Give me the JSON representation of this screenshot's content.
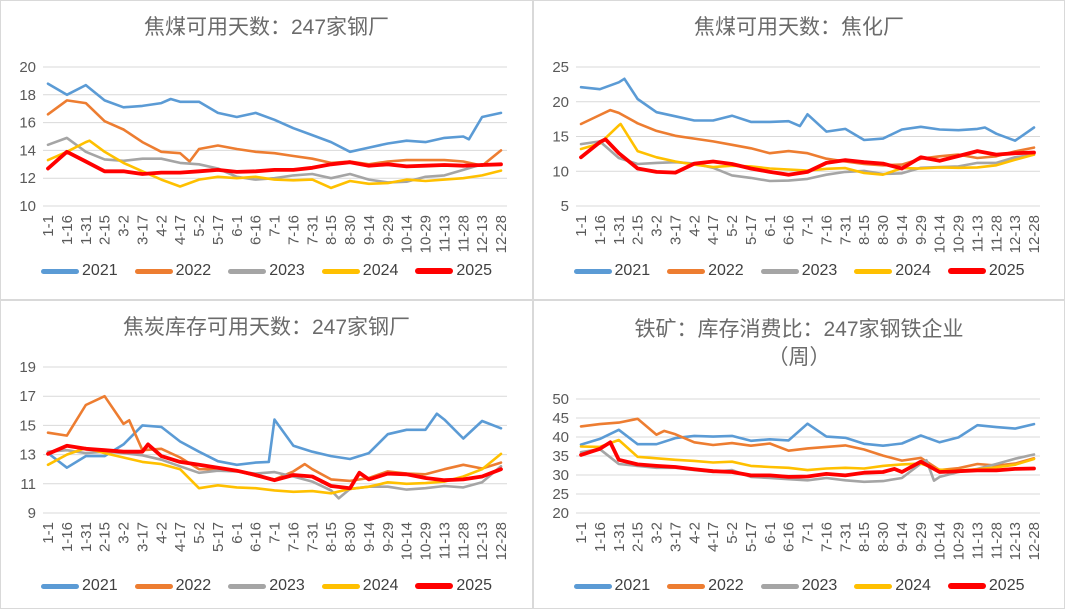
{
  "style": {
    "grid_color": "#D9D9D9",
    "tick_color": "#595959",
    "title_color": "#6B6B6B",
    "legend_text_color": "#404040",
    "background": "#FFFFFF"
  },
  "legend": {
    "items": [
      {
        "label": "2021",
        "color": "#5B9BD5"
      },
      {
        "label": "2022",
        "color": "#ED7D31"
      },
      {
        "label": "2023",
        "color": "#A5A5A5"
      },
      {
        "label": "2024",
        "color": "#FFC000"
      },
      {
        "label": "2025",
        "color": "#FF0000"
      }
    ],
    "emphasized_series": "2025"
  },
  "chart_data": [
    {
      "type": "line",
      "title": "焦煤可用天数：247家钢厂",
      "title_lines": [
        "焦煤可用天数：247家钢厂"
      ],
      "ylim": [
        10,
        20
      ],
      "yticks": [
        10,
        12,
        14,
        16,
        18,
        20
      ],
      "grid": true,
      "legend_position": "bottom",
      "categories": [
        "1-1",
        "1-16",
        "1-31",
        "2-15",
        "3-2",
        "3-17",
        "4-2",
        "4-17",
        "5-2",
        "5-17",
        "6-1",
        "6-16",
        "7-1",
        "7-16",
        "7-31",
        "8-15",
        "8-30",
        "9-14",
        "9-29",
        "10-14",
        "10-29",
        "11-13",
        "11-28",
        "12-13",
        "12-28"
      ],
      "series": [
        {
          "name": "2021",
          "color": "#5B9BD5",
          "width": 2.6,
          "values": [
            18.8,
            18.0,
            18.7,
            17.6,
            17.1,
            17.2,
            17.4,
            17.5,
            17.5,
            16.7,
            16.4,
            16.7,
            16.2,
            15.6,
            15.1,
            14.6,
            13.9,
            14.2,
            14.5,
            14.7,
            14.6,
            14.9,
            15.0,
            16.4,
            16.7
          ],
          "extra": [
            [
              6.5,
              17.7
            ],
            [
              22.3,
              14.8
            ]
          ]
        },
        {
          "name": "2022",
          "color": "#ED7D31",
          "width": 2.6,
          "values": [
            16.6,
            17.6,
            17.4,
            16.1,
            15.5,
            14.6,
            13.9,
            13.8,
            14.1,
            14.35,
            14.1,
            13.9,
            13.8,
            13.6,
            13.4,
            13.1,
            13.2,
            13.0,
            13.2,
            13.3,
            13.3,
            13.3,
            13.2,
            12.9,
            14.0
          ],
          "extra": [
            [
              7.5,
              13.2
            ]
          ]
        },
        {
          "name": "2023",
          "color": "#A5A5A5",
          "width": 2.6,
          "values": [
            14.4,
            14.9,
            13.9,
            13.35,
            13.25,
            13.4,
            13.4,
            13.1,
            13.0,
            12.7,
            12.1,
            11.9,
            12.0,
            12.2,
            12.3,
            12.0,
            12.3,
            11.9,
            11.7,
            11.75,
            12.1,
            12.2,
            12.6,
            13.0,
            13.0
          ],
          "extra": []
        },
        {
          "name": "2024",
          "color": "#FFC000",
          "width": 2.6,
          "values": [
            13.3,
            13.9,
            14.6,
            13.9,
            13.1,
            12.5,
            11.9,
            11.4,
            11.9,
            12.1,
            12.0,
            12.1,
            11.9,
            11.85,
            11.9,
            11.3,
            11.8,
            11.6,
            11.65,
            11.9,
            11.8,
            11.9,
            12.0,
            12.2,
            12.55
          ],
          "extra": [
            [
              2.2,
              14.7
            ]
          ]
        },
        {
          "name": "2025",
          "color": "#FF0000",
          "width": 3.8,
          "values": [
            12.7,
            13.9,
            13.2,
            12.5,
            12.5,
            12.3,
            12.4,
            12.4,
            12.5,
            12.6,
            12.45,
            12.5,
            12.6,
            12.6,
            12.75,
            13.0,
            13.15,
            12.9,
            13.0,
            12.85,
            12.9,
            12.95,
            12.9,
            12.95,
            13.0
          ],
          "extra": []
        }
      ]
    },
    {
      "type": "line",
      "title": "焦煤可用天数：焦化厂",
      "title_lines": [
        "焦煤可用天数：焦化厂"
      ],
      "ylim": [
        5,
        25
      ],
      "yticks": [
        5,
        10,
        15,
        20,
        25
      ],
      "grid": true,
      "legend_position": "bottom",
      "categories": [
        "1-1",
        "1-16",
        "1-31",
        "2-15",
        "3-2",
        "3-17",
        "4-2",
        "4-17",
        "5-2",
        "5-17",
        "6-1",
        "6-16",
        "7-1",
        "7-16",
        "7-31",
        "8-15",
        "8-30",
        "9-14",
        "9-29",
        "10-14",
        "10-29",
        "11-13",
        "11-28",
        "12-13",
        "12-28"
      ],
      "series": [
        {
          "name": "2021",
          "color": "#5B9BD5",
          "width": 2.6,
          "values": [
            22.1,
            21.8,
            22.8,
            20.4,
            18.5,
            17.9,
            17.3,
            17.3,
            18.0,
            17.1,
            17.1,
            17.2,
            18.2,
            15.7,
            16.1,
            14.5,
            14.7,
            16.0,
            16.4,
            16.0,
            15.9,
            16.1,
            15.4,
            14.4,
            16.3
          ],
          "extra": [
            [
              2.3,
              23.3
            ],
            [
              11.6,
              16.5
            ],
            [
              21.4,
              16.3
            ]
          ]
        },
        {
          "name": "2022",
          "color": "#ED7D31",
          "width": 2.6,
          "values": [
            16.8,
            18.1,
            18.4,
            16.9,
            15.8,
            15.1,
            14.7,
            14.3,
            13.8,
            13.3,
            12.6,
            12.9,
            12.6,
            11.8,
            11.4,
            11.05,
            10.85,
            10.95,
            11.8,
            12.15,
            12.4,
            11.9,
            12.15,
            12.85,
            13.4
          ],
          "extra": [
            [
              1.55,
              18.8
            ]
          ]
        },
        {
          "name": "2023",
          "color": "#A5A5A5",
          "width": 2.6,
          "values": [
            13.9,
            14.3,
            11.9,
            11.05,
            11.2,
            11.3,
            11.1,
            10.5,
            9.4,
            9.05,
            8.6,
            8.65,
            8.9,
            9.5,
            9.9,
            10.05,
            9.6,
            9.7,
            10.5,
            10.6,
            10.7,
            11.2,
            11.2,
            12.0,
            12.4
          ],
          "extra": []
        },
        {
          "name": "2024",
          "color": "#FFC000",
          "width": 2.6,
          "values": [
            13.2,
            14.0,
            16.6,
            12.9,
            12.0,
            11.4,
            10.95,
            10.6,
            10.8,
            10.7,
            10.4,
            10.25,
            10.1,
            10.35,
            10.45,
            9.75,
            9.5,
            10.45,
            10.4,
            10.55,
            10.5,
            10.55,
            10.85,
            11.65,
            12.4
          ],
          "extra": [
            [
              2.1,
              16.8
            ]
          ]
        },
        {
          "name": "2025",
          "color": "#FF0000",
          "width": 3.8,
          "values": [
            12.0,
            14.2,
            12.6,
            10.4,
            9.9,
            9.8,
            11.1,
            11.4,
            11.05,
            10.4,
            9.9,
            9.5,
            9.9,
            11.2,
            11.6,
            11.3,
            11.1,
            10.4,
            12.0,
            11.5,
            12.2,
            12.9,
            12.4,
            12.6,
            12.7
          ],
          "extra": [
            [
              1.3,
              14.6
            ]
          ]
        }
      ]
    },
    {
      "type": "line",
      "title": "焦炭库存可用天数：247家钢厂",
      "title_lines": [
        "焦炭库存可用天数：247家钢厂"
      ],
      "ylim": [
        9,
        19
      ],
      "yticks": [
        9,
        11,
        13,
        15,
        17,
        19
      ],
      "grid": true,
      "legend_position": "bottom",
      "categories": [
        "1-1",
        "1-16",
        "1-31",
        "2-15",
        "3-2",
        "3-17",
        "4-2",
        "4-17",
        "5-2",
        "5-17",
        "6-1",
        "6-16",
        "7-1",
        "7-16",
        "7-31",
        "8-15",
        "8-30",
        "9-14",
        "9-29",
        "10-14",
        "10-29",
        "11-13",
        "11-28",
        "12-13",
        "12-28"
      ],
      "series": [
        {
          "name": "2021",
          "color": "#5B9BD5",
          "width": 2.6,
          "values": [
            13.1,
            12.1,
            12.9,
            12.9,
            13.7,
            15.0,
            14.9,
            13.9,
            13.2,
            12.55,
            12.3,
            12.45,
            15.4,
            13.6,
            13.2,
            12.9,
            12.7,
            13.1,
            14.4,
            14.7,
            14.7,
            15.4,
            14.1,
            15.3,
            14.8
          ],
          "extra": [
            [
              11.7,
              12.5
            ],
            [
              20.6,
              15.8
            ]
          ]
        },
        {
          "name": "2022",
          "color": "#ED7D31",
          "width": 2.6,
          "values": [
            14.5,
            14.3,
            16.4,
            17.0,
            15.1,
            13.3,
            13.4,
            12.8,
            12.0,
            12.0,
            11.9,
            11.55,
            11.3,
            11.85,
            12.0,
            11.3,
            11.2,
            11.4,
            11.85,
            11.7,
            11.65,
            12.0,
            12.3,
            12.05,
            12.45
          ],
          "extra": [
            [
              4.3,
              15.35
            ],
            [
              13.6,
              12.35
            ]
          ]
        },
        {
          "name": "2023",
          "color": "#A5A5A5",
          "width": 2.6,
          "values": [
            13.2,
            13.3,
            13.1,
            13.2,
            13.1,
            12.95,
            12.65,
            12.2,
            11.75,
            11.9,
            11.85,
            11.7,
            11.8,
            11.5,
            11.15,
            10.55,
            10.65,
            10.8,
            10.8,
            10.6,
            10.7,
            10.85,
            10.75,
            11.1,
            12.2
          ],
          "extra": [
            [
              15.4,
              10.0
            ]
          ]
        },
        {
          "name": "2024",
          "color": "#FFC000",
          "width": 2.6,
          "values": [
            12.3,
            13.0,
            13.45,
            13.1,
            12.8,
            12.5,
            12.35,
            12.0,
            10.7,
            10.9,
            10.75,
            10.7,
            10.55,
            10.45,
            10.5,
            10.35,
            10.65,
            10.8,
            11.1,
            11.0,
            11.05,
            11.15,
            11.5,
            12.0,
            13.05
          ],
          "extra": []
        },
        {
          "name": "2025",
          "color": "#FF0000",
          "width": 3.8,
          "values": [
            13.05,
            13.6,
            13.4,
            13.3,
            13.2,
            13.2,
            12.9,
            12.5,
            12.3,
            12.1,
            11.9,
            11.6,
            11.25,
            11.6,
            11.5,
            10.85,
            10.7,
            11.3,
            11.7,
            11.65,
            11.4,
            11.25,
            11.3,
            11.5,
            12.0
          ],
          "extra": [
            [
              5.3,
              13.7
            ],
            [
              16.5,
              11.75
            ]
          ]
        }
      ]
    },
    {
      "type": "line",
      "title": "铁矿：库存消费比：247家钢铁企业（周）",
      "title_lines": [
        "铁矿：库存消费比：247家钢铁企业",
        "（周）"
      ],
      "ylim": [
        20,
        50
      ],
      "yticks": [
        20,
        25,
        30,
        35,
        40,
        45,
        50
      ],
      "grid": true,
      "legend_position": "bottom",
      "categories": [
        "1-1",
        "1-16",
        "1-31",
        "2-15",
        "3-2",
        "3-17",
        "4-2",
        "4-17",
        "5-2",
        "5-17",
        "6-1",
        "6-16",
        "7-1",
        "7-16",
        "7-31",
        "8-15",
        "8-30",
        "9-14",
        "9-29",
        "10-14",
        "10-29",
        "11-13",
        "11-28",
        "12-13",
        "12-28"
      ],
      "series": [
        {
          "name": "2021",
          "color": "#5B9BD5",
          "width": 2.6,
          "values": [
            38.0,
            39.5,
            41.9,
            38.1,
            38.1,
            39.7,
            40.3,
            40.1,
            40.3,
            39.0,
            39.4,
            39.1,
            43.5,
            40.1,
            39.8,
            38.2,
            37.7,
            38.3,
            40.4,
            38.6,
            39.9,
            43.1,
            42.6,
            42.2,
            43.4
          ],
          "extra": []
        },
        {
          "name": "2022",
          "color": "#ED7D31",
          "width": 2.6,
          "values": [
            42.8,
            43.4,
            43.8,
            44.8,
            40.6,
            40.7,
            38.6,
            37.9,
            38.4,
            37.7,
            38.3,
            36.4,
            37.0,
            37.4,
            37.8,
            36.7,
            35.1,
            33.8,
            34.5,
            31.3,
            31.8,
            32.9,
            32.5,
            33.0,
            34.4
          ],
          "extra": [
            [
              4.4,
              41.6
            ]
          ]
        },
        {
          "name": "2023",
          "color": "#A5A5A5",
          "width": 2.6,
          "values": [
            36.0,
            36.8,
            32.9,
            32.4,
            31.9,
            31.9,
            31.3,
            30.8,
            31.3,
            29.5,
            29.2,
            28.9,
            28.6,
            29.2,
            28.6,
            28.2,
            28.4,
            29.2,
            33.0,
            29.5,
            30.8,
            31.6,
            32.9,
            34.3,
            35.4
          ],
          "extra": [
            [
              18.3,
              33.9
            ],
            [
              18.7,
              28.5
            ]
          ]
        },
        {
          "name": "2024",
          "color": "#FFC000",
          "width": 2.6,
          "values": [
            37.5,
            37.4,
            39.2,
            34.8,
            34.4,
            34.0,
            33.7,
            33.3,
            33.5,
            32.4,
            32.1,
            31.9,
            31.3,
            31.7,
            31.9,
            31.7,
            32.4,
            32.8,
            33.0,
            31.4,
            31.2,
            31.5,
            32.0,
            32.7,
            34.2
          ],
          "extra": []
        },
        {
          "name": "2025",
          "color": "#FF0000",
          "width": 3.8,
          "values": [
            35.3,
            36.9,
            34.0,
            32.8,
            32.4,
            32.1,
            31.5,
            31.0,
            30.8,
            29.9,
            29.9,
            29.5,
            29.6,
            30.3,
            29.9,
            30.6,
            30.8,
            30.8,
            33.5,
            30.8,
            31.0,
            31.2,
            31.2,
            31.6,
            31.7
          ],
          "extra": [
            [
              1.55,
              38.6
            ],
            [
              16.6,
              31.6
            ]
          ]
        }
      ]
    }
  ]
}
